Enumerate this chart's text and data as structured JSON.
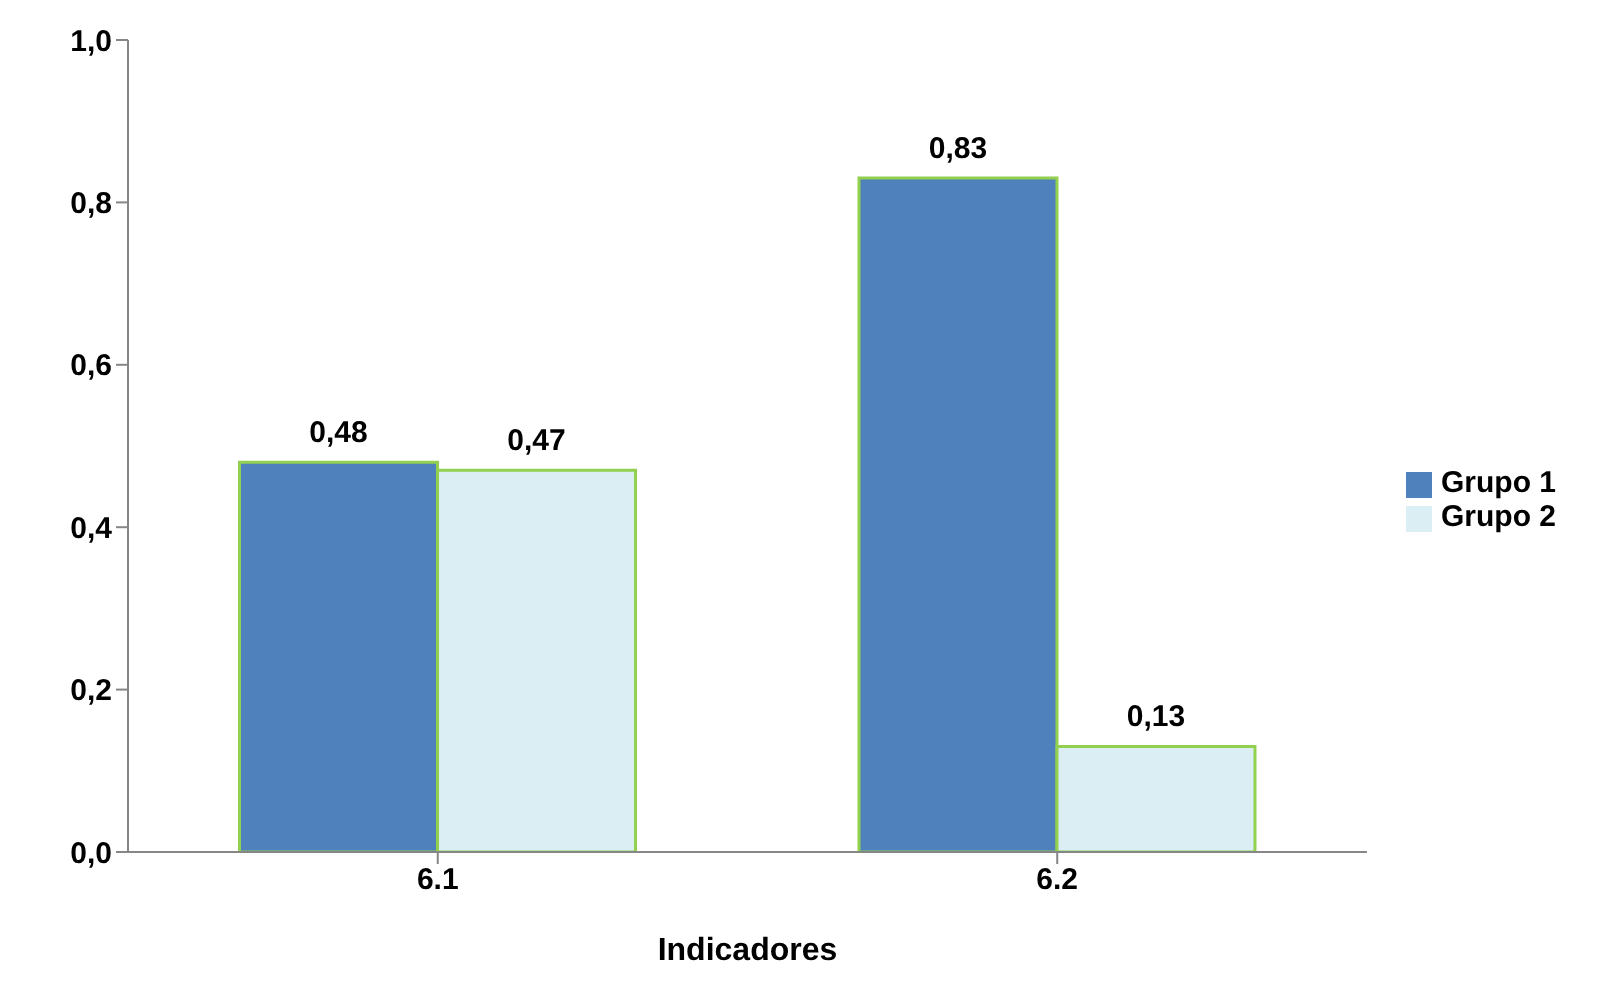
{
  "chart_data": {
    "type": "bar",
    "xlabel": "Indicadores",
    "categories": [
      "6.1",
      "6.2"
    ],
    "series": [
      {
        "name": "Grupo 1",
        "color": "#4f81bd",
        "values": [
          0.48,
          0.83
        ],
        "value_labels": [
          "0,48",
          "0,83"
        ]
      },
      {
        "name": "Grupo 2",
        "color": "#dbeef4",
        "values": [
          0.47,
          0.13
        ],
        "value_labels": [
          "0,47",
          "0,13"
        ]
      }
    ],
    "ylim": [
      0,
      1
    ],
    "yticks": [
      {
        "value": 0,
        "label": "0,0"
      },
      {
        "value": 0.2,
        "label": "0,2"
      },
      {
        "value": 0.4,
        "label": "0,4"
      },
      {
        "value": 0.6,
        "label": "0,6"
      },
      {
        "value": 0.8,
        "label": "0,8"
      },
      {
        "value": 1,
        "label": "1,0"
      }
    ],
    "grid": false,
    "legend": "right"
  }
}
